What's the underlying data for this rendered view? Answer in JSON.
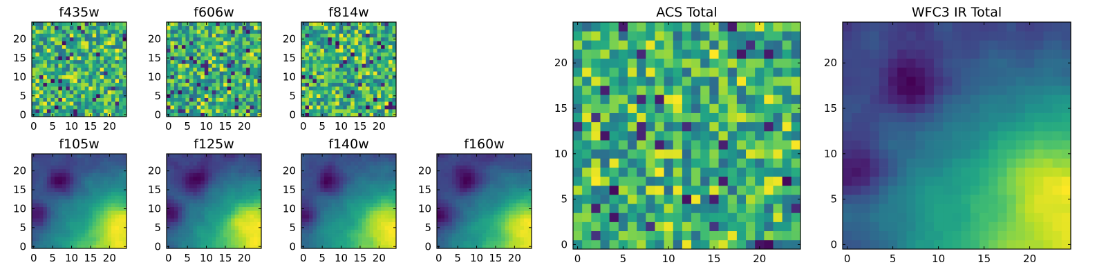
{
  "chart_data": [
    {
      "type": "heatmap",
      "title": "f435w",
      "x_ticks": [
        0,
        5,
        10,
        15,
        20
      ],
      "y_ticks": [
        0,
        5,
        10,
        15,
        20
      ],
      "xlim": [
        -0.5,
        24.5
      ],
      "ylim": [
        -0.5,
        24.5
      ],
      "grid": false,
      "colormap": "viridis",
      "origin": "lower",
      "rows": 25,
      "cols": 25,
      "pattern": "noise",
      "seed": 11
    },
    {
      "type": "heatmap",
      "title": "f606w",
      "x_ticks": [
        0,
        5,
        10,
        15,
        20
      ],
      "y_ticks": [
        0,
        5,
        10,
        15,
        20
      ],
      "xlim": [
        -0.5,
        24.5
      ],
      "ylim": [
        -0.5,
        24.5
      ],
      "grid": false,
      "colormap": "viridis",
      "origin": "lower",
      "rows": 25,
      "cols": 25,
      "pattern": "noise",
      "seed": 23
    },
    {
      "type": "heatmap",
      "title": "f814w",
      "x_ticks": [
        0,
        5,
        10,
        15,
        20
      ],
      "y_ticks": [
        0,
        5,
        10,
        15,
        20
      ],
      "xlim": [
        -0.5,
        24.5
      ],
      "ylim": [
        -0.5,
        24.5
      ],
      "grid": false,
      "colormap": "viridis",
      "origin": "lower",
      "rows": 25,
      "cols": 25,
      "pattern": "noise",
      "seed": 37
    },
    {
      "type": "heatmap",
      "title": "f105w",
      "x_ticks": [
        0,
        5,
        10,
        15,
        20
      ],
      "y_ticks": [
        0,
        5,
        10,
        15,
        20
      ],
      "xlim": [
        -0.5,
        24.5
      ],
      "ylim": [
        -0.5,
        24.5
      ],
      "grid": false,
      "colormap": "viridis",
      "origin": "lower",
      "rows": 25,
      "cols": 25,
      "pattern": "smooth",
      "seed": 41
    },
    {
      "type": "heatmap",
      "title": "f125w",
      "x_ticks": [
        0,
        5,
        10,
        15,
        20
      ],
      "y_ticks": [
        0,
        5,
        10,
        15,
        20
      ],
      "xlim": [
        -0.5,
        24.5
      ],
      "ylim": [
        -0.5,
        24.5
      ],
      "grid": false,
      "colormap": "viridis",
      "origin": "lower",
      "rows": 25,
      "cols": 25,
      "pattern": "smooth",
      "seed": 53
    },
    {
      "type": "heatmap",
      "title": "f140w",
      "x_ticks": [
        0,
        5,
        10,
        15,
        20
      ],
      "y_ticks": [
        0,
        5,
        10,
        15,
        20
      ],
      "xlim": [
        -0.5,
        24.5
      ],
      "ylim": [
        -0.5,
        24.5
      ],
      "grid": false,
      "colormap": "viridis",
      "origin": "lower",
      "rows": 25,
      "cols": 25,
      "pattern": "smooth",
      "seed": 67
    },
    {
      "type": "heatmap",
      "title": "f160w",
      "x_ticks": [
        0,
        5,
        10,
        15,
        20
      ],
      "y_ticks": [
        0,
        5,
        10,
        15,
        20
      ],
      "xlim": [
        -0.5,
        24.5
      ],
      "ylim": [
        -0.5,
        24.5
      ],
      "grid": false,
      "colormap": "viridis",
      "origin": "lower",
      "rows": 25,
      "cols": 25,
      "pattern": "smooth",
      "seed": 71
    },
    {
      "type": "heatmap",
      "title": "ACS Total",
      "x_ticks": [
        0,
        5,
        10,
        15,
        20
      ],
      "y_ticks": [
        0,
        5,
        10,
        15,
        20
      ],
      "xlim": [
        -0.5,
        24.5
      ],
      "ylim": [
        -0.5,
        24.5
      ],
      "grid": false,
      "colormap": "viridis",
      "origin": "lower",
      "rows": 25,
      "cols": 25,
      "pattern": "noise",
      "seed": 83
    },
    {
      "type": "heatmap",
      "title": "WFC3 IR Total",
      "x_ticks": [
        0,
        5,
        10,
        15,
        20
      ],
      "y_ticks": [
        0,
        5,
        10,
        15,
        20
      ],
      "xlim": [
        -0.5,
        24.5
      ],
      "ylim": [
        -0.5,
        24.5
      ],
      "grid": false,
      "colormap": "viridis",
      "origin": "lower",
      "rows": 25,
      "cols": 25,
      "pattern": "smooth",
      "seed": 97
    }
  ]
}
